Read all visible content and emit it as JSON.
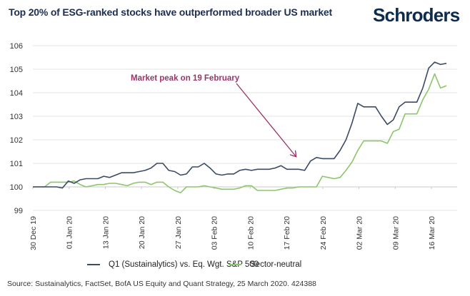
{
  "header": {
    "title": "Top 20% of ESG-ranked stocks have outperformed broader US market",
    "logo": "Schroders"
  },
  "colors": {
    "series_q1": "#3b4a66",
    "series_sector": "#8dc56a",
    "annotation": "#9b3569",
    "grid": "#e3e3e3"
  },
  "footer": {
    "source": "Source: Sustainalytics, FactSet, BofA US Equity and Quant Strategy, 25 March 2020. 424388"
  },
  "chart_data": {
    "type": "line",
    "title": "Top 20% of ESG-ranked stocks have outperformed broader US market",
    "xlabel": "",
    "ylabel": "",
    "ylim": [
      99,
      106
    ],
    "yticks": [
      "99",
      "100",
      "101",
      "102",
      "103",
      "104",
      "105",
      "106"
    ],
    "xtick_labels": [
      "30 Dec 19",
      "01 Jan 20",
      "13 Jan 20",
      "20 Jan 20",
      "27 Jan 20",
      "03 Feb 20",
      "10 Feb 20",
      "17 Feb 20",
      "24 Feb 20",
      "02 Mar 20",
      "09 Mar 20",
      "16 Mar 20"
    ],
    "xtick_index": [
      0,
      5,
      10,
      15,
      20,
      25,
      30,
      35,
      40,
      45,
      50,
      55
    ],
    "grid": true,
    "legend_position": "bottom",
    "annotation": {
      "text": "Market peak on 19 February",
      "x_index": 36.5,
      "y": 100.9
    },
    "series": [
      {
        "name": "Q1 (Sustainalytics) vs. Eq. Wgt. S&P 500",
        "values": [
          100.0,
          100.0,
          100.0,
          100.0,
          100.0,
          99.95,
          100.25,
          100.15,
          100.3,
          100.35,
          100.35,
          100.35,
          100.45,
          100.4,
          100.5,
          100.6,
          100.6,
          100.6,
          100.65,
          100.7,
          100.8,
          101.0,
          101.0,
          100.7,
          100.65,
          100.5,
          100.55,
          100.85,
          100.85,
          101.0,
          100.8,
          100.55,
          100.5,
          100.55,
          100.55,
          100.7,
          100.75,
          100.7,
          100.75,
          100.75,
          100.75,
          100.8,
          100.9,
          100.75,
          100.75,
          100.75,
          100.7,
          101.1,
          101.25,
          101.2,
          101.2,
          101.2,
          101.55,
          102.0,
          102.7,
          103.55,
          103.4,
          103.4,
          103.4
        ],
        "values_tail": [
          103.0,
          102.65,
          102.85,
          103.4,
          103.6,
          103.6,
          103.6,
          104.2,
          105.05,
          105.3,
          105.2,
          105.25
        ]
      },
      {
        "name": "Sector-neutral",
        "values": [
          100.0,
          100.0,
          100.0,
          100.2,
          100.2,
          100.2,
          100.2,
          100.25,
          100.1,
          100.0,
          100.05,
          100.1,
          100.1,
          100.15,
          100.15,
          100.1,
          100.05,
          100.15,
          100.2,
          100.2,
          100.1,
          100.2,
          100.2,
          100.0,
          99.85,
          99.75,
          100.0,
          100.0,
          100.0,
          100.05,
          100.0,
          99.95,
          99.9,
          99.9,
          99.9,
          99.95,
          100.05,
          100.05,
          99.85,
          99.85,
          99.85,
          99.85,
          99.9,
          99.95,
          99.95,
          100.0,
          100.0,
          100.0,
          100.0,
          100.45,
          100.4,
          100.35,
          100.4,
          100.7,
          101.05,
          101.55,
          101.95,
          101.95,
          101.95
        ],
        "values_tail": [
          101.95,
          101.85,
          102.35,
          102.45,
          103.1,
          103.1,
          103.1,
          103.7,
          104.15,
          104.8,
          104.2,
          104.3
        ]
      }
    ]
  }
}
